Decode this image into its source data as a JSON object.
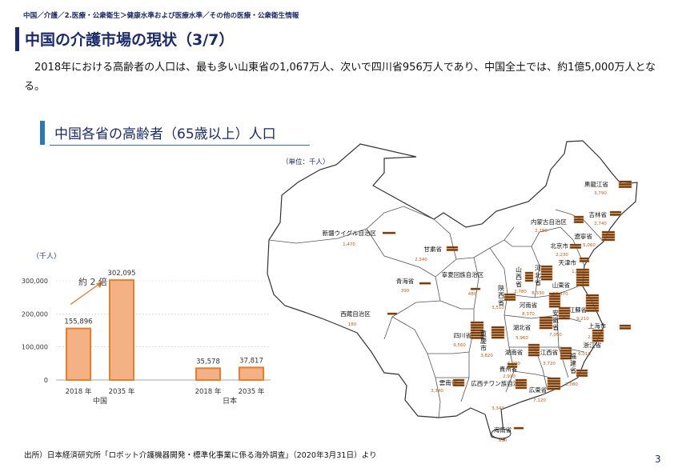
{
  "header": {
    "breadcrumb": "中国／介護／2.医療・公衆衛生＞健康水準および医療水準／その他の医療・公衆衛生情報",
    "title": "中国の介護市場の現状（3/7）"
  },
  "intro_text": "2018年における高齢者の人口は、最も多い山東省の1,067万人、次いで四川省956万人であり、中国全土では、約1億5,000万人となる。",
  "section": {
    "title": "中国各省の高齢者（65歳以上）人口",
    "unit_note": "（単位：千人）"
  },
  "chart_data": {
    "type": "bar",
    "title": "",
    "ylabel": "（千人）",
    "ylim": [
      0,
      300000
    ],
    "yticks": [
      "300,000",
      "200,000",
      "100,000",
      "0"
    ],
    "groups": [
      "中国",
      "日本"
    ],
    "categories": [
      "2018 年",
      "2035 年",
      "2018 年",
      "2035 年"
    ],
    "group_of_category": [
      0,
      0,
      1,
      1
    ],
    "values": [
      155896,
      302095,
      35578,
      37817
    ],
    "value_labels": [
      "155,896",
      "302,095",
      "35,578",
      "37,817"
    ],
    "annotation": "約 2 倍",
    "bar_color": "#f4b183",
    "bar_edge_color": "#e87d2a"
  },
  "map": {
    "provinces": [
      {
        "name": "黒龍江省",
        "value": "3,790"
      },
      {
        "name": "吉林省",
        "value": "2,740"
      },
      {
        "name": "内蒙古自治区",
        "value": "2,280"
      },
      {
        "name": "遼寧省",
        "value": "5,060"
      },
      {
        "name": "新疆ウイグル自治区",
        "value": "1,470"
      },
      {
        "name": "北京市",
        "value": "2,230"
      },
      {
        "name": "天津市",
        "value": "1,490"
      },
      {
        "name": "甘粛省",
        "value": "2,340"
      },
      {
        "name": "寧夏回族自治区",
        "value": "480"
      },
      {
        "name": "山西省",
        "value": "2,780"
      },
      {
        "name": "河北省",
        "value": "8,330"
      },
      {
        "name": "山東省",
        "value": "10,670"
      },
      {
        "name": "青海省",
        "value": "390"
      },
      {
        "name": "陝西省",
        "value": "3,510"
      },
      {
        "name": "河南省",
        "value": "8,370"
      },
      {
        "name": "江蘇省",
        "value": "9,210"
      },
      {
        "name": "安徽省",
        "value": "7,050"
      },
      {
        "name": "西蔵自治区",
        "value": "180"
      },
      {
        "name": "湖北省",
        "value": "5,960"
      },
      {
        "name": "上海市",
        "value": "2,660"
      },
      {
        "name": "四川省",
        "value": "9,560"
      },
      {
        "name": "重慶市",
        "value": "3,820"
      },
      {
        "name": "浙江省",
        "value": "6,010"
      },
      {
        "name": "湖南省",
        "value": "6,900"
      },
      {
        "name": "江西省",
        "value": "3,720"
      },
      {
        "name": "福建省",
        "value": "3,080"
      },
      {
        "name": "貴州省",
        "value": "2,910"
      },
      {
        "name": "雲南省",
        "value": "3,340"
      },
      {
        "name": "広西チワン族自治区",
        "value": "3,340"
      },
      {
        "name": "広東省",
        "value": "7,120"
      },
      {
        "name": "海南省",
        "value": "830"
      }
    ]
  },
  "source_text": "出所）日本経済研究所「ロボット介護機器開発・標準化事業に係る海外調査」（2020年3月31日）より",
  "page_number": "3"
}
